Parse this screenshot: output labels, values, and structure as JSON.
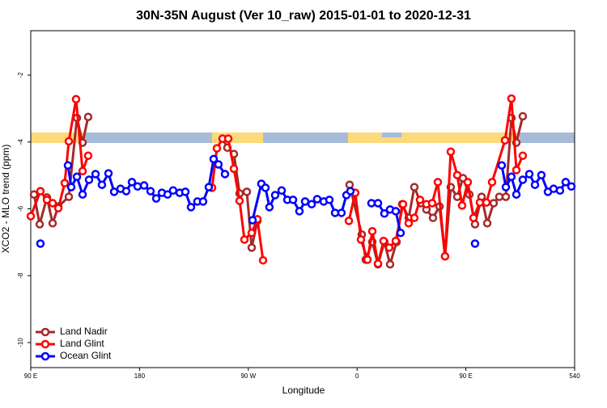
{
  "chart_data": {
    "type": "line",
    "title": "30N-35N August (Ver 10_raw)   2015-01-01 to 2020-12-31",
    "x_label": "Longitude",
    "y_label": "XCO2 - MLO trend (ppm)",
    "xlim": [
      90,
      540
    ],
    "xticks": [
      {
        "value": 90,
        "label": "90 E"
      },
      180,
      {
        "value": 270,
        "label": "90 W"
      },
      {
        "value": 360,
        "label": "0"
      },
      {
        "value": 450,
        "label": "90 E"
      },
      540
    ],
    "ylim": [
      -10.75,
      -0.67
    ],
    "yticks": [
      -2,
      -4,
      -6,
      -8,
      -10
    ],
    "legend": "bottomleft",
    "series": [
      {
        "name": "Land Nadir",
        "color": "#a52a2a",
        "x": [
          92.7,
          97.4,
          103.4,
          108.1,
          112.8,
          121.5,
          128.2,
          132.9,
          137.5,
          null,
          248.7,
          252.7,
          258.1,
          262.8,
          268.8,
          272.8,
          277.5,
          null,
          353.8,
          363.9,
          367.2,
          372.6,
          377.3,
          382.6,
          387.3,
          392.7,
          397.3,
          402.7,
          407.4,
          412.7,
          417.4,
          422.8,
          428.2,
          432.8,
          437.5,
          442.9,
          447.6,
          452.9,
          457.6,
          463,
          467.7,
          473,
          477.7,
          483.1,
          487.7,
          491.8,
          497.1
        ],
        "values": [
          -5.57,
          -6.46,
          -5.66,
          -6.43,
          -5.93,
          -5.64,
          -3.28,
          -4.02,
          -3.25,
          null,
          -3.9,
          -4.17,
          -4.36,
          -5.54,
          -5.49,
          -7.16,
          -6.36,
          null,
          -5.28,
          -6.77,
          -7.52,
          -6.99,
          -7.66,
          -6.99,
          -7.66,
          -6.99,
          -5.86,
          -6.27,
          -5.35,
          -5.83,
          -6.02,
          -6.27,
          -5.93,
          -7.42,
          -5.35,
          -5.64,
          -5.08,
          -5.57,
          -6.46,
          -5.64,
          -6.43,
          -5.83,
          -5.64,
          -5.64,
          -3.28,
          -4.02,
          -3.23
        ]
      },
      {
        "name": "Land Glint",
        "color": "#ff0000",
        "x": [
          90,
          98,
          103.4,
          108.1,
          112.8,
          118.1,
          121.5,
          127.5,
          132.9,
          137.5,
          null,
          240,
          244,
          248.7,
          253.4,
          258.1,
          262.8,
          266.8,
          272.8,
          277.5,
          282.2,
          null,
          353.2,
          358.5,
          363.2,
          368.6,
          372.6,
          377.3,
          381.9,
          386.6,
          392,
          398,
          402.7,
          407.4,
          412.1,
          417.4,
          422.1,
          426.8,
          432.8,
          437.5,
          442.9,
          446.9,
          451.6,
          456.3,
          461.6,
          467,
          471.7,
          482.4,
          487.7,
          491.8,
          497.1
        ],
        "values": [
          -6.22,
          -5.47,
          -5.73,
          -5.83,
          -5.98,
          -5.23,
          -3.98,
          -2.72,
          -4.87,
          -4.41,
          null,
          -5.37,
          -4.19,
          -3.9,
          -3.9,
          -4.8,
          -5.76,
          -6.92,
          -6.72,
          -6.31,
          -7.54,
          null,
          -6.36,
          -5.52,
          -6.92,
          -7.52,
          -6.67,
          -7.64,
          -6.96,
          -7.16,
          -6.96,
          -5.86,
          -6.43,
          -6.27,
          -5.73,
          -5.86,
          -5.83,
          -5.2,
          -7.42,
          -4.29,
          -4.99,
          -5.9,
          -5.2,
          -6.27,
          -5.81,
          -5.81,
          -5.2,
          -3.95,
          -2.7,
          -4.84,
          -4.41
        ]
      },
      {
        "name": "Ocean Glint",
        "color": "#0000ff",
        "x": [
          98,
          null,
          120.8,
          123.5,
          128.2,
          132.9,
          138.2,
          143.6,
          148.9,
          154.3,
          159,
          164.3,
          169,
          173.7,
          178.4,
          183.8,
          189.1,
          193.8,
          198.5,
          203.2,
          207.8,
          213.2,
          217.9,
          222.6,
          227.9,
          232.6,
          237.3,
          241.3,
          245.3,
          250.7,
          null,
          273.5,
          280.8,
          284.2,
          287.5,
          292.2,
          297.6,
          302.3,
          307,
          312.3,
          317,
          322.4,
          327,
          332.4,
          337.1,
          341.8,
          347.1,
          351.2,
          354.5,
          null,
          371.9,
          377.3,
          382.6,
          387.3,
          392,
          396,
          null,
          457.6,
          null,
          479.7,
          483.1,
          487.7,
          491.8,
          497.1,
          502.5,
          507.2,
          512.5,
          517.9,
          522.6,
          527.9,
          532.6,
          537.3
        ],
        "values": [
          -7.04,
          null,
          -4.7,
          -5.35,
          -5.04,
          -5.57,
          -5.13,
          -4.96,
          -5.28,
          -4.94,
          -5.49,
          -5.4,
          -5.47,
          -5.2,
          -5.33,
          -5.3,
          -5.47,
          -5.69,
          -5.52,
          -5.57,
          -5.45,
          -5.52,
          -5.49,
          -5.95,
          -5.78,
          -5.78,
          -5.35,
          -4.51,
          -4.67,
          -4.96,
          null,
          -6.34,
          -5.25,
          -5.37,
          -5.95,
          -5.59,
          -5.45,
          -5.73,
          -5.73,
          -6.07,
          -5.78,
          -5.86,
          -5.71,
          -5.78,
          -5.73,
          -6.12,
          -6.12,
          -5.59,
          -5.47,
          null,
          -5.83,
          -5.83,
          -6.14,
          -6.02,
          -6.07,
          -6.72,
          null,
          -7.04,
          null,
          -4.7,
          -5.35,
          -5.04,
          -5.57,
          -5.13,
          -4.96,
          -5.28,
          -4.99,
          -5.49,
          -5.4,
          -5.45,
          -5.2,
          -5.33
        ]
      }
    ]
  }
}
